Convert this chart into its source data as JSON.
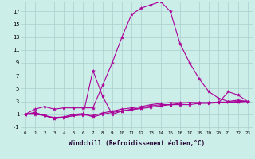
{
  "xlabel": "Windchill (Refroidissement éolien,°C)",
  "background_color": "#cceee8",
  "grid_color": "#aacccc",
  "line_color": "#aa0099",
  "xlim": [
    -0.5,
    23.5
  ],
  "ylim": [
    -1.5,
    18.5
  ],
  "xticks": [
    0,
    1,
    2,
    3,
    4,
    5,
    6,
    7,
    8,
    9,
    10,
    11,
    12,
    13,
    14,
    15,
    16,
    17,
    18,
    19,
    20,
    21,
    22,
    23
  ],
  "yticks": [
    -1,
    1,
    3,
    5,
    7,
    9,
    11,
    13,
    15,
    17
  ],
  "series": [
    [
      1.0,
      1.8,
      2.2,
      1.8,
      2.0,
      2.0,
      2.0,
      2.0,
      5.5,
      9.0,
      13.0,
      16.5,
      17.5,
      18.0,
      18.5,
      17.0,
      12.0,
      9.0,
      6.5,
      4.5,
      3.5,
      3.0,
      3.2,
      3.0
    ],
    [
      1.0,
      1.3,
      0.8,
      0.4,
      0.5,
      0.8,
      1.0,
      7.8,
      3.8,
      1.0,
      1.5,
      1.8,
      2.0,
      2.3,
      2.5,
      2.5,
      2.5,
      2.5,
      2.7,
      2.7,
      2.8,
      4.5,
      4.0,
      3.0
    ],
    [
      1.0,
      1.2,
      0.8,
      0.3,
      0.5,
      0.8,
      0.9,
      0.8,
      1.2,
      1.5,
      1.8,
      2.0,
      2.2,
      2.5,
      2.7,
      2.8,
      2.8,
      2.8,
      2.8,
      2.8,
      2.9,
      2.9,
      3.0,
      3.0
    ],
    [
      1.0,
      1.0,
      0.8,
      0.5,
      0.6,
      1.0,
      1.1,
      0.6,
      1.0,
      1.3,
      1.5,
      1.7,
      1.9,
      2.1,
      2.3,
      2.5,
      2.7,
      2.8,
      2.8,
      2.8,
      2.8,
      2.9,
      2.9,
      3.0
    ]
  ]
}
